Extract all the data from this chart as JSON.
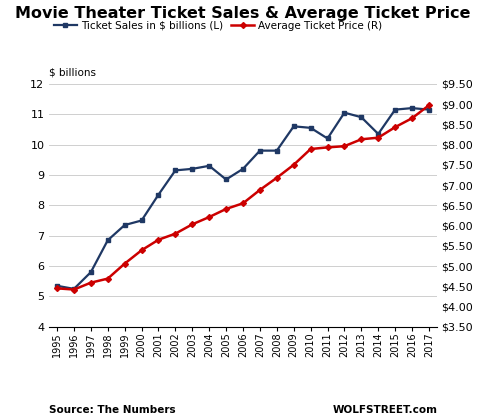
{
  "years": [
    1995,
    1996,
    1997,
    1998,
    1999,
    2000,
    2001,
    2002,
    2003,
    2004,
    2005,
    2006,
    2007,
    2008,
    2009,
    2010,
    2011,
    2012,
    2013,
    2014,
    2015,
    2016,
    2017
  ],
  "ticket_sales": [
    5.35,
    5.25,
    5.8,
    6.85,
    7.35,
    7.5,
    8.35,
    9.15,
    9.2,
    9.3,
    8.85,
    9.2,
    9.8,
    9.8,
    10.6,
    10.55,
    10.2,
    11.05,
    10.9,
    10.35,
    11.15,
    11.2,
    11.15
  ],
  "avg_price": [
    4.45,
    4.42,
    4.59,
    4.69,
    5.06,
    5.39,
    5.65,
    5.8,
    6.03,
    6.21,
    6.41,
    6.55,
    6.88,
    7.18,
    7.5,
    7.89,
    7.93,
    7.96,
    8.13,
    8.17,
    8.43,
    8.65,
    8.97
  ],
  "title": "Movie Theater Ticket Sales & Average Ticket Price",
  "legend1": "Ticket Sales in $ billions (L)",
  "legend2": "Average Ticket Price (R)",
  "ylabel_left": "$ billions",
  "source_left": "Source: The Numbers",
  "source_right": "WOLFSTREET.com",
  "ylim_left": [
    4,
    12
  ],
  "ylim_right": [
    3.5,
    9.5
  ],
  "yticks_left": [
    4,
    5,
    6,
    7,
    8,
    9,
    10,
    11,
    12
  ],
  "yticks_right": [
    3.5,
    4.0,
    4.5,
    5.0,
    5.5,
    6.0,
    6.5,
    7.0,
    7.5,
    8.0,
    8.5,
    9.0,
    9.5
  ],
  "color_blue": "#1F3864",
  "color_red": "#CC0000",
  "bg_color": "#FFFFFF",
  "grid_color": "#C8C8C8"
}
